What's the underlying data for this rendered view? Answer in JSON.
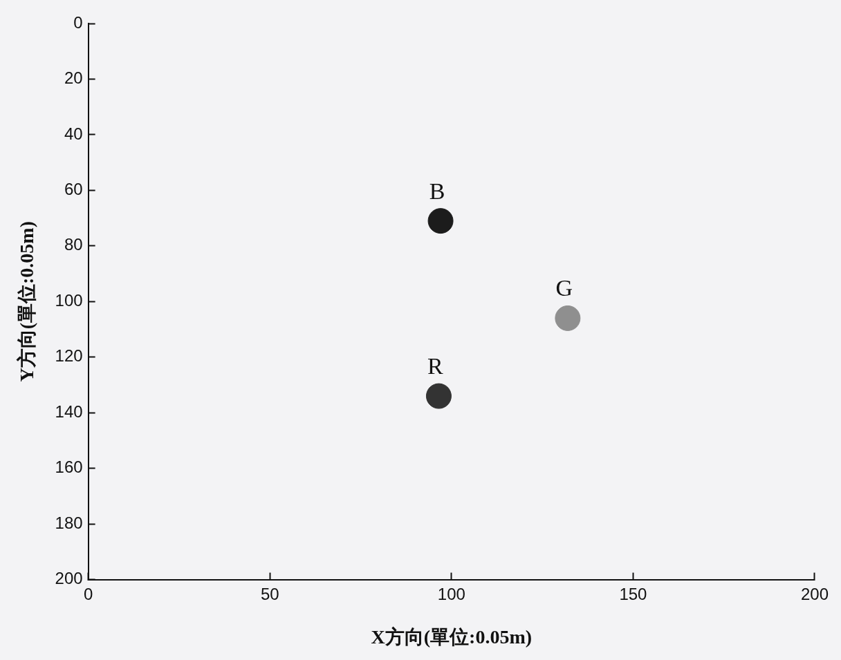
{
  "chart_data": {
    "type": "scatter",
    "xlabel": "X方向(單位:0.05m)",
    "ylabel": "Y方向(單位:0.05m)",
    "xlim": [
      0,
      200
    ],
    "xticks": [
      0,
      50,
      100,
      150,
      200
    ],
    "ylim": [
      200,
      0
    ],
    "yticks": [
      0,
      20,
      40,
      60,
      80,
      100,
      120,
      140,
      160,
      180,
      200
    ],
    "grid": false,
    "legend": false,
    "marker": "circle",
    "series": [
      {
        "name": "B",
        "color": "#1c1c1c",
        "x": [
          97
        ],
        "values": [
          71
        ]
      },
      {
        "name": "G",
        "color": "#8f8f8f",
        "x": [
          132
        ],
        "values": [
          106
        ]
      },
      {
        "name": "R",
        "color": "#333333",
        "x": [
          96.5
        ],
        "values": [
          134
        ]
      }
    ]
  }
}
